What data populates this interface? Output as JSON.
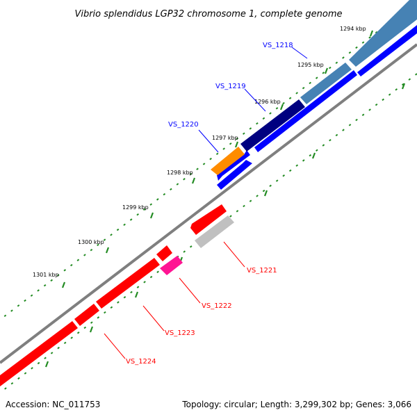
{
  "title": "Vibrio splendidus LGP32 chromosome 1, complete genome",
  "footer": {
    "accession": "Accession: NC_011753",
    "summary": "Topology: circular; Length: 3,299,302 bp; Genes: 3,066"
  },
  "colors": {
    "backbone": "#7f7f7f",
    "tick": "#228b22",
    "forward_label": "#0000ff",
    "reverse_label": "#ff0000"
  },
  "ticks": [
    "1294 kbp",
    "1295 kbp",
    "1296 kbp",
    "1297 kbp",
    "1298 kbp",
    "1299 kbp",
    "1300 kbp",
    "1301 kbp"
  ],
  "genes": [
    {
      "name": "VS_1218",
      "strand": "forward",
      "color": "#4682b4"
    },
    {
      "name": "VS_1219",
      "strand": "forward",
      "color": "#000080"
    },
    {
      "name": "VS_1220",
      "strand": "forward",
      "color": "#ff8c00"
    },
    {
      "name": "VS_1221",
      "strand": "reverse",
      "color": "#c0c0c0"
    },
    {
      "name": "VS_1222",
      "strand": "reverse",
      "color": "#ff1493"
    },
    {
      "name": "VS_1223",
      "strand": "reverse",
      "color": "#ff0000"
    },
    {
      "name": "VS_1224",
      "strand": "reverse",
      "color": "#ff0000"
    }
  ]
}
